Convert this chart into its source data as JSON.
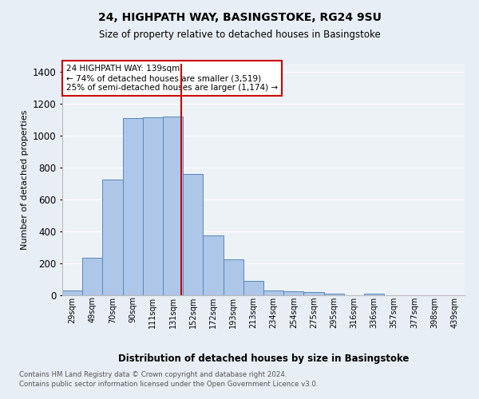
{
  "title1": "24, HIGHPATH WAY, BASINGSTOKE, RG24 9SU",
  "title2": "Size of property relative to detached houses in Basingstoke",
  "xlabel": "Distribution of detached houses by size in Basingstoke",
  "ylabel": "Number of detached properties",
  "categories": [
    "29sqm",
    "49sqm",
    "70sqm",
    "90sqm",
    "111sqm",
    "131sqm",
    "152sqm",
    "172sqm",
    "193sqm",
    "213sqm",
    "234sqm",
    "254sqm",
    "275sqm",
    "295sqm",
    "316sqm",
    "336sqm",
    "357sqm",
    "377sqm",
    "398sqm",
    "439sqm"
  ],
  "values": [
    30,
    235,
    725,
    1110,
    1115,
    1120,
    760,
    375,
    225,
    90,
    30,
    25,
    20,
    12,
    0,
    12,
    0,
    0,
    0,
    0
  ],
  "bar_color": "#aec6e8",
  "bar_edge_color": "#5588bb",
  "vline_color": "#cc0000",
  "vline_pos": 5.43,
  "annotation_text": "24 HIGHPATH WAY: 139sqm\n← 74% of detached houses are smaller (3,519)\n25% of semi-detached houses are larger (1,174) →",
  "annotation_box_color": "#cc0000",
  "footer1": "Contains HM Land Registry data © Crown copyright and database right 2024.",
  "footer2": "Contains public sector information licensed under the Open Government Licence v3.0.",
  "ylim": [
    0,
    1450
  ],
  "bg_color": "#e8eef5",
  "plot_bg_color": "#edf2f7",
  "grid_color": "#ffffff"
}
